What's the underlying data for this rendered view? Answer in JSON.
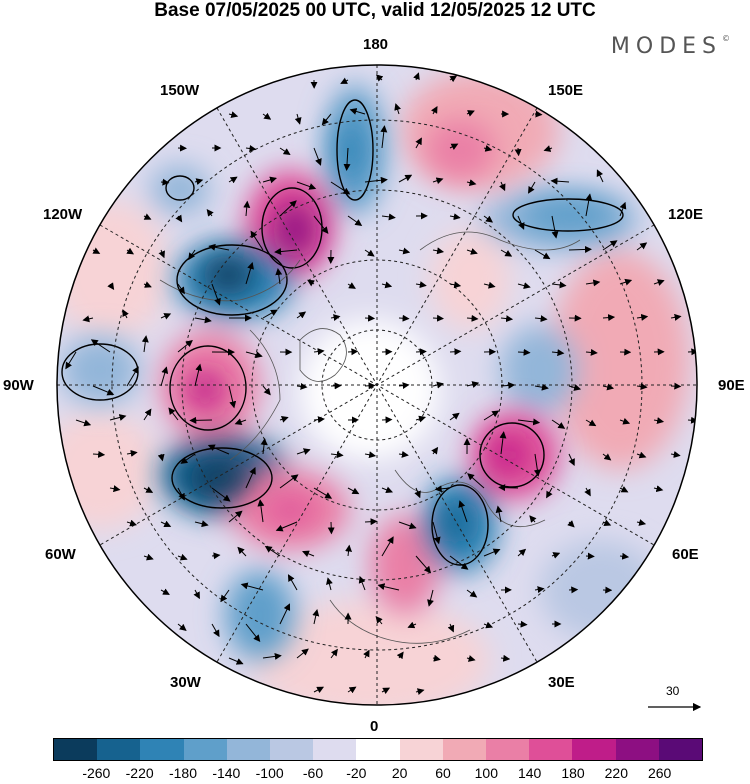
{
  "title": "Base 07/05/2025 00 UTC, valid 12/05/2025 12 UTC",
  "brand": "MODES",
  "brand_mark": "©",
  "lon_labels": {
    "top": "180",
    "bottom": "0",
    "left": "90W",
    "right": "90E",
    "nw": "150W",
    "ne": "150E",
    "wnw": "120W",
    "ene": "120E",
    "wsw": "60W",
    "ese": "60E",
    "sw": "30W",
    "se": "30E"
  },
  "vector_scale_label": "30",
  "colorbar": {
    "colors": [
      "#0b3b5c",
      "#16628f",
      "#2f83b5",
      "#5f9fca",
      "#93b6d9",
      "#bac8e3",
      "#dedcef",
      "#ffffff",
      "#f7d3d6",
      "#f1aab5",
      "#ea7fa6",
      "#df4f98",
      "#bf1d89",
      "#8d0f82",
      "#5a0a76"
    ],
    "tick_labels": [
      "-260",
      "-220",
      "-180",
      "-140",
      "-100",
      "-60",
      "-20",
      "20",
      "60",
      "100",
      "140",
      "180",
      "220",
      "260"
    ]
  },
  "anomaly_centers": [
    {
      "lon_label": "165W",
      "sign": "negative",
      "strength": 180
    },
    {
      "lon_label": "145W",
      "sign": "positive",
      "strength": 220
    },
    {
      "lon_label": "125W",
      "sign": "negative",
      "strength": 220
    },
    {
      "lon_label": "100W",
      "sign": "negative",
      "strength": 100
    },
    {
      "lon_label": "85W",
      "sign": "positive",
      "strength": 180
    },
    {
      "lon_label": "60W",
      "sign": "negative",
      "strength": 260
    },
    {
      "lon_label": "45W",
      "sign": "positive",
      "strength": 180
    },
    {
      "lon_label": "30W",
      "sign": "negative",
      "strength": 140
    },
    {
      "lon_label": "10E",
      "sign": "positive",
      "strength": 140
    },
    {
      "lon_label": "35E",
      "sign": "negative",
      "strength": 180
    },
    {
      "lon_label": "60E",
      "sign": "positive",
      "strength": 220
    },
    {
      "lon_label": "90E",
      "sign": "negative",
      "strength": 100
    },
    {
      "lon_label": "125E",
      "sign": "negative",
      "strength": 140
    },
    {
      "lon_label": "160E",
      "sign": "positive",
      "strength": 100
    }
  ]
}
